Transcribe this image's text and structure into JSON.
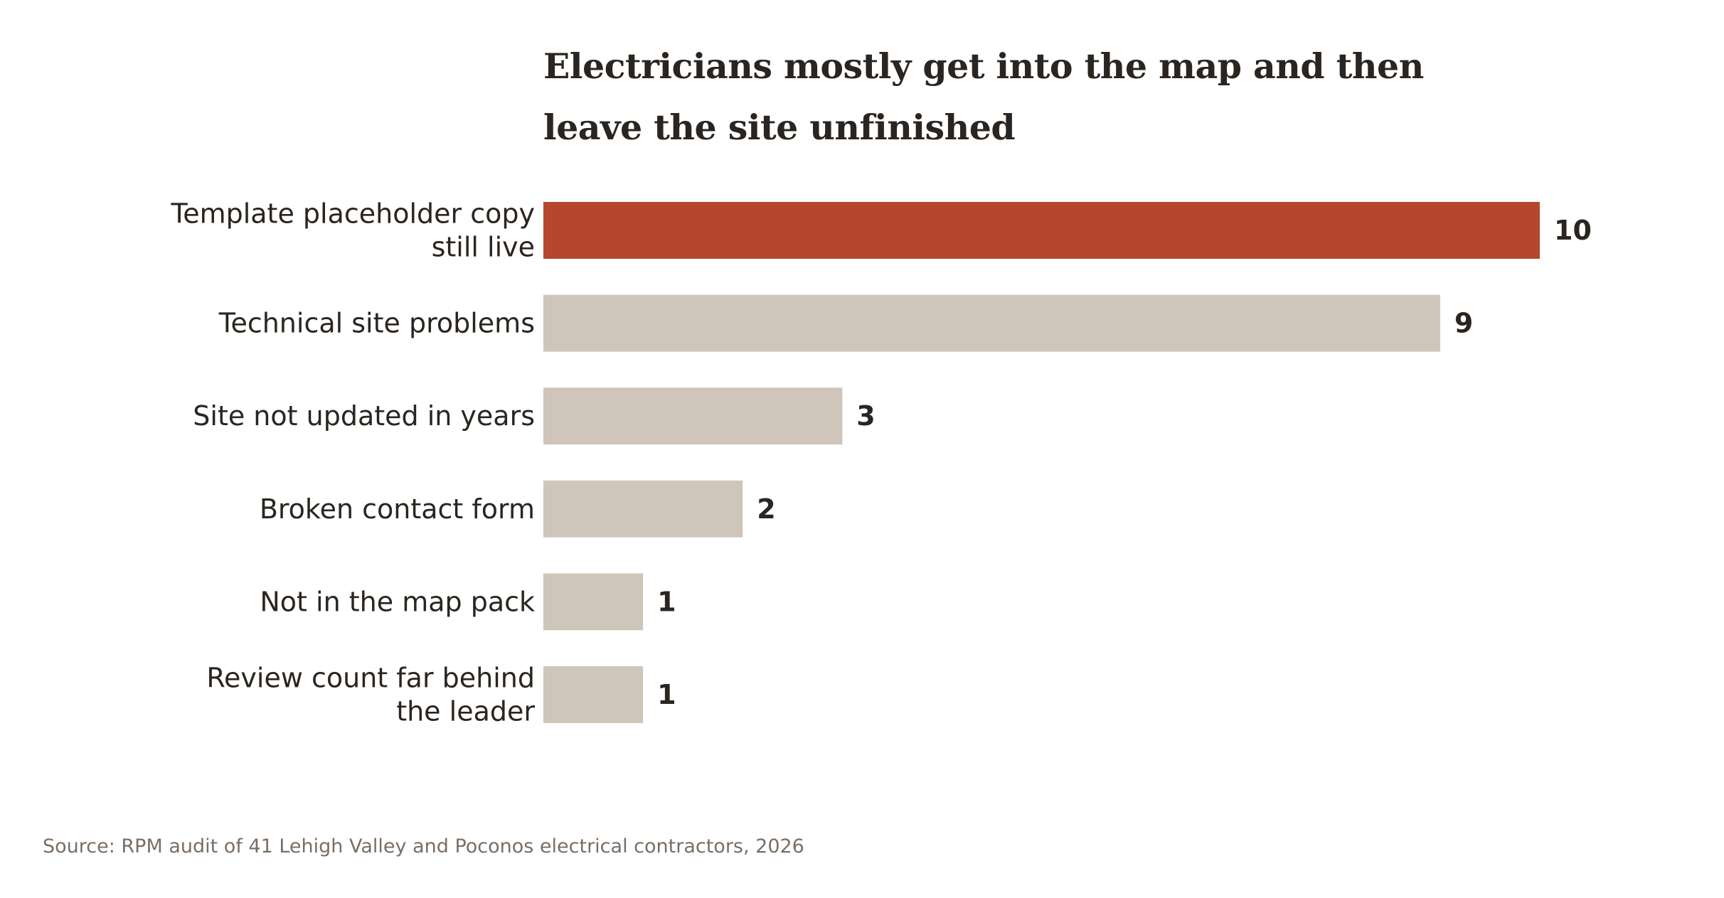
{
  "chart_data": {
    "type": "bar",
    "orientation": "horizontal",
    "title_lines": [
      "Electricians mostly get into the map and then",
      "leave the site unfinished"
    ],
    "categories": [
      [
        "Template placeholder copy",
        "still live"
      ],
      [
        "Technical site problems"
      ],
      [
        "Site not updated in years"
      ],
      [
        "Broken contact form"
      ],
      [
        "Not in the map pack"
      ],
      [
        "Review count far behind",
        "the leader"
      ]
    ],
    "values": [
      10,
      9,
      3,
      2,
      1,
      1
    ],
    "value_labels": [
      "10",
      "9",
      "3",
      "2",
      "1",
      "1"
    ],
    "xlim": [
      0,
      10
    ],
    "highlight_index": 0,
    "grid": false,
    "legend": "none",
    "colors": {
      "highlight": "#b5482c",
      "default": "#cfc5ba",
      "text": "#2a2520",
      "source": "#7a6e64"
    }
  },
  "source": "Source: RPM audit of 41 Lehigh Valley and Poconos electrical contractors, 2026"
}
